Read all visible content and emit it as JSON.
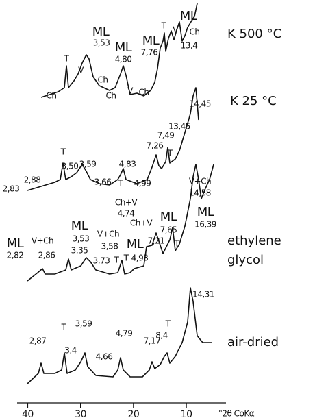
{
  "panels": [
    {
      "label_lines": [
        "K 500 °C"
      ],
      "annotations": [
        "ML",
        "3,53",
        "T",
        "V",
        "Ch",
        "Ch",
        "ML",
        "4,80",
        "Ch",
        "V",
        "Ch",
        "ML",
        "7,76",
        "T",
        "V",
        "ML",
        "Ch",
        "13,4"
      ]
    },
    {
      "label_lines": [
        "K 25 °C"
      ],
      "annotations": [
        "14,45",
        "13,45",
        "7,49",
        "7,26",
        "T",
        "4,83",
        "T",
        "4,99",
        "3,59",
        "3,50",
        "T",
        "3,66",
        "2,88",
        "2,83"
      ]
    },
    {
      "label_lines": [
        "ethylene",
        "glycol"
      ],
      "annotations": [
        "V+Ch",
        "14,58",
        "ML",
        "16,39",
        "ML",
        "7,65",
        "T",
        "Ch+V",
        "4,74",
        "Ch+V",
        "7,21",
        "ML",
        "4,93",
        "T",
        "ML",
        "3,53",
        "3,35",
        "V+Ch",
        "3,58",
        "3,73",
        "T",
        "ML",
        "V+Ch",
        "2,82",
        "2,86"
      ]
    },
    {
      "label_lines": [
        "air-dried"
      ],
      "annotations": [
        "14,31",
        "2,87",
        "T",
        "3,59",
        "3,4",
        "4,66",
        "4,79",
        "7,17",
        "8,4",
        "T"
      ]
    }
  ],
  "x_axis": {
    "xlim": [
      42,
      2.5
    ],
    "xticks": [
      40,
      30,
      20,
      10
    ],
    "label": "°2θ CoKα"
  }
}
